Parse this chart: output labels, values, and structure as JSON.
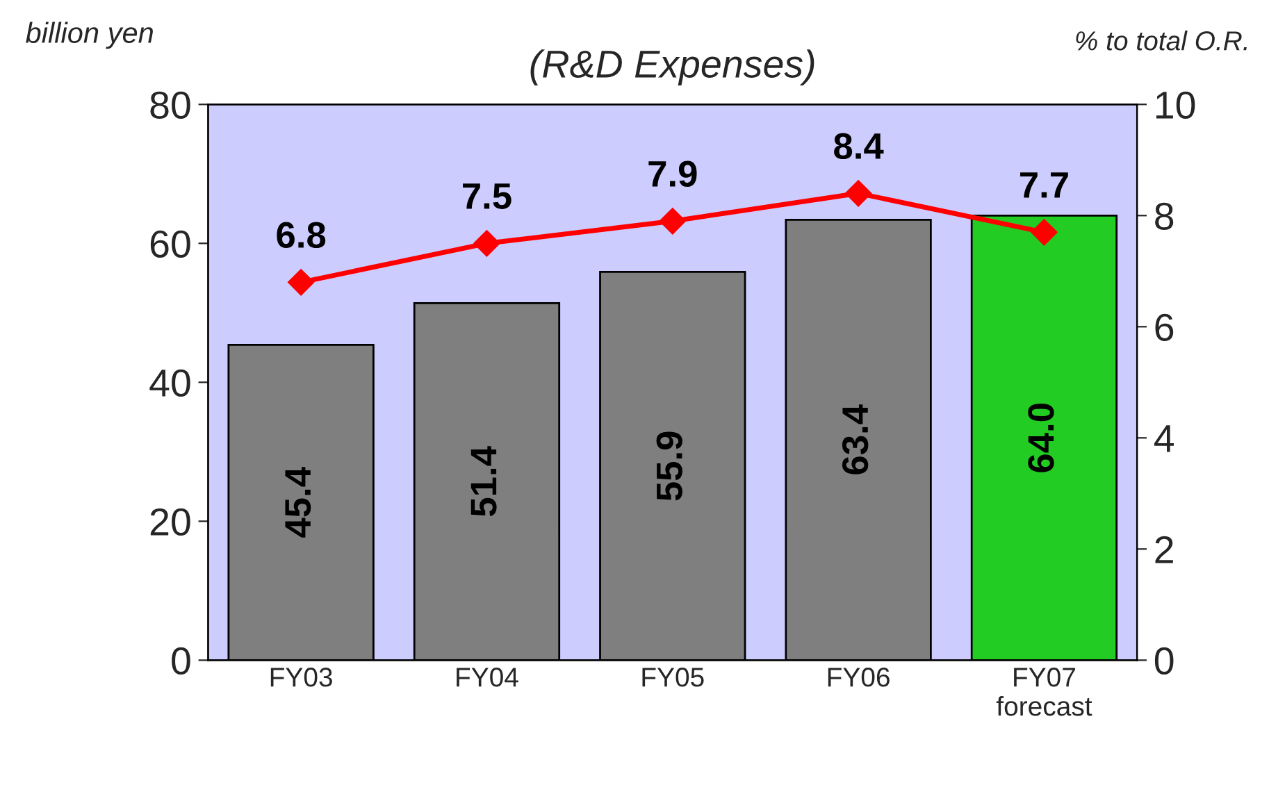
{
  "chart_data": {
    "type": "bar",
    "title": "(R&D Expenses)",
    "ylabel": "billion yen",
    "y2label": "% to total O.R.",
    "categories": [
      "FY03",
      "FY04",
      "FY05",
      "FY06",
      "FY07\nforecast"
    ],
    "series": [
      {
        "colors": [
          "#7f7f7f",
          "#7f7f7f",
          "#7f7f7f",
          "#7f7f7f",
          "#22cc22"
        ],
        "values": [
          45.4,
          51.4,
          55.9,
          63.4,
          64.0
        ],
        "value_labels": [
          "45.4",
          "51.4",
          "55.9",
          "63.4",
          "64.0"
        ]
      },
      {
        "type": "line",
        "axis": "y2",
        "color": "#ff0000",
        "marker": "diamond",
        "values": [
          6.8,
          7.5,
          7.9,
          8.4,
          7.7
        ]
      }
    ],
    "ylim": [
      0,
      80
    ],
    "yticks": [
      0,
      20,
      40,
      60,
      80
    ],
    "y2lim": [
      0,
      10
    ],
    "y2ticks": [
      0,
      2,
      4,
      6,
      8,
      10
    ],
    "data_labels": true,
    "grid": false,
    "legend": false
  }
}
